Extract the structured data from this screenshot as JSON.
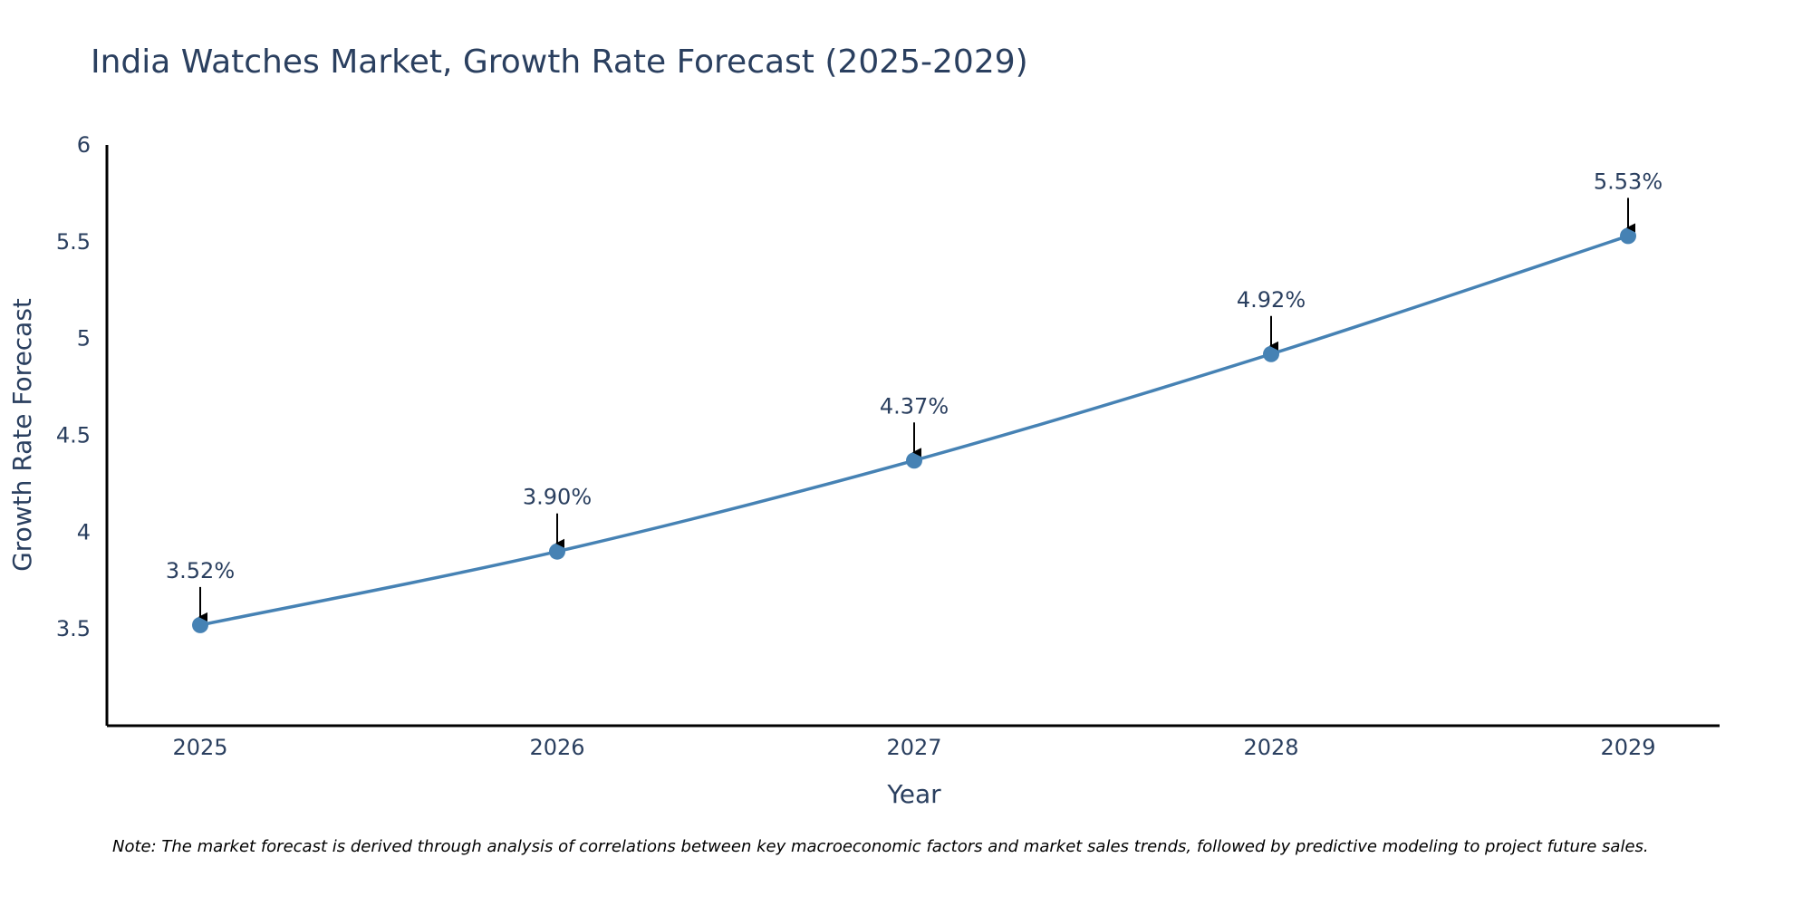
{
  "chart_data": {
    "type": "line",
    "title": "India Watches Market, Growth Rate Forecast (2025-2029)",
    "xlabel": "Year",
    "ylabel": "Growth Rate Forecast",
    "categories": [
      "2025",
      "2026",
      "2027",
      "2028",
      "2029"
    ],
    "values": [
      3.52,
      3.9,
      4.37,
      4.92,
      5.53
    ],
    "data_labels": [
      "3.52%",
      "3.90%",
      "4.37%",
      "4.92%",
      "5.53%"
    ],
    "ylim": [
      3.0,
      6.0
    ],
    "y_ticks": [
      "3.5",
      "4",
      "4.5",
      "5",
      "5.5",
      "6"
    ],
    "y_tick_values": [
      3.5,
      4,
      4.5,
      5,
      5.5,
      6
    ],
    "grid": false,
    "line_color": "#4682b4",
    "marker_color": "#4682b4",
    "annotation_arrow_color": "#000000",
    "note": "Note: The market forecast is derived through analysis of correlations between key macroeconomic factors and market sales trends, followed by predictive modeling to project future sales."
  }
}
